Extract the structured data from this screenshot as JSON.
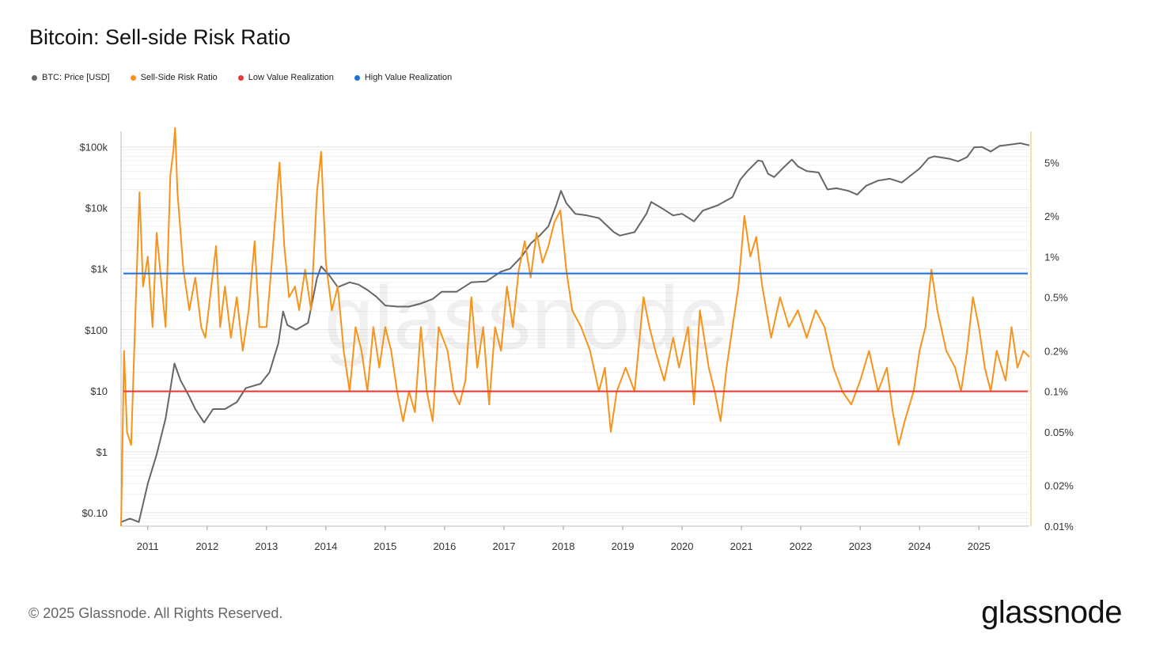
{
  "title": "Bitcoin: Sell-side Risk Ratio",
  "footer": "© 2025 Glassnode. All Rights Reserved.",
  "brand": "glassnode",
  "watermark": "glassnode",
  "legend": [
    {
      "label": "BTC: Price [USD]",
      "color": "#666666"
    },
    {
      "label": "Sell-Side Risk Ratio",
      "color": "#f7931a"
    },
    {
      "label": "Low Value Realization",
      "color": "#e53935"
    },
    {
      "label": "High Value Realization",
      "color": "#1e6fd9"
    }
  ],
  "chart_data": {
    "type": "line",
    "x_ticks": [
      "2011",
      "2012",
      "2013",
      "2014",
      "2015",
      "2016",
      "2017",
      "2018",
      "2019",
      "2020",
      "2021",
      "2022",
      "2023",
      "2024",
      "2025"
    ],
    "y_left_ticks": [
      {
        "value": 0.1,
        "label": "$0.10"
      },
      {
        "value": 1,
        "label": "$1"
      },
      {
        "value": 10,
        "label": "$10"
      },
      {
        "value": 100,
        "label": "$100"
      },
      {
        "value": 1000,
        "label": "$1k"
      },
      {
        "value": 10000,
        "label": "$10k"
      },
      {
        "value": 100000,
        "label": "$100k"
      }
    ],
    "y_right_ticks": [
      {
        "value": 0.01,
        "label": "0.01%"
      },
      {
        "value": 0.02,
        "label": "0.02%"
      },
      {
        "value": 0.05,
        "label": "0.05%"
      },
      {
        "value": 0.1,
        "label": "0.1%"
      },
      {
        "value": 0.2,
        "label": "0.2%"
      },
      {
        "value": 0.5,
        "label": "0.5%"
      },
      {
        "value": 1,
        "label": "1%"
      },
      {
        "value": 2,
        "label": "2%"
      },
      {
        "value": 5,
        "label": "5%"
      }
    ],
    "x_range": [
      2010.55,
      2025.85
    ],
    "y_left_range_log": [
      0.06,
      180000
    ],
    "y_right_range_log_pct": [
      0.01,
      8.5
    ],
    "scale": "log",
    "thresholds": [
      {
        "name": "Low Value Realization",
        "value_pct": 0.1,
        "color": "#e53935"
      },
      {
        "name": "High Value Realization",
        "value_pct": 0.75,
        "color": "#1e6fd9"
      }
    ],
    "series": [
      {
        "name": "BTC: Price [USD]",
        "axis": "left",
        "color": "#666666",
        "points": [
          [
            2010.55,
            0.07
          ],
          [
            2010.7,
            0.08
          ],
          [
            2010.85,
            0.07
          ],
          [
            2011.0,
            0.3
          ],
          [
            2011.15,
            0.9
          ],
          [
            2011.3,
            3.5
          ],
          [
            2011.45,
            28
          ],
          [
            2011.55,
            15
          ],
          [
            2011.7,
            8
          ],
          [
            2011.8,
            5
          ],
          [
            2011.95,
            3
          ],
          [
            2012.1,
            5
          ],
          [
            2012.3,
            5
          ],
          [
            2012.5,
            6.5
          ],
          [
            2012.65,
            11
          ],
          [
            2012.9,
            13
          ],
          [
            2013.05,
            20
          ],
          [
            2013.2,
            60
          ],
          [
            2013.28,
            200
          ],
          [
            2013.35,
            120
          ],
          [
            2013.5,
            100
          ],
          [
            2013.7,
            130
          ],
          [
            2013.85,
            700
          ],
          [
            2013.92,
            1100
          ],
          [
            2014.05,
            800
          ],
          [
            2014.2,
            500
          ],
          [
            2014.4,
            600
          ],
          [
            2014.55,
            550
          ],
          [
            2014.7,
            450
          ],
          [
            2014.85,
            350
          ],
          [
            2015.0,
            250
          ],
          [
            2015.2,
            240
          ],
          [
            2015.4,
            240
          ],
          [
            2015.6,
            270
          ],
          [
            2015.8,
            320
          ],
          [
            2015.95,
            420
          ],
          [
            2016.2,
            420
          ],
          [
            2016.45,
            600
          ],
          [
            2016.7,
            620
          ],
          [
            2016.95,
            900
          ],
          [
            2017.1,
            1000
          ],
          [
            2017.3,
            1600
          ],
          [
            2017.45,
            2600
          ],
          [
            2017.6,
            3500
          ],
          [
            2017.75,
            5000
          ],
          [
            2017.88,
            11000
          ],
          [
            2017.96,
            19000
          ],
          [
            2018.05,
            12000
          ],
          [
            2018.2,
            8000
          ],
          [
            2018.4,
            7500
          ],
          [
            2018.6,
            6800
          ],
          [
            2018.85,
            4000
          ],
          [
            2018.95,
            3500
          ],
          [
            2019.2,
            4000
          ],
          [
            2019.4,
            8000
          ],
          [
            2019.48,
            12500
          ],
          [
            2019.65,
            10000
          ],
          [
            2019.85,
            7500
          ],
          [
            2020.0,
            8000
          ],
          [
            2020.2,
            6000
          ],
          [
            2020.35,
            9000
          ],
          [
            2020.6,
            11000
          ],
          [
            2020.85,
            15000
          ],
          [
            2020.98,
            29000
          ],
          [
            2021.1,
            40000
          ],
          [
            2021.28,
            60000
          ],
          [
            2021.35,
            58000
          ],
          [
            2021.45,
            36000
          ],
          [
            2021.55,
            32000
          ],
          [
            2021.7,
            45000
          ],
          [
            2021.85,
            62000
          ],
          [
            2021.95,
            48000
          ],
          [
            2022.1,
            40000
          ],
          [
            2022.3,
            38000
          ],
          [
            2022.45,
            20000
          ],
          [
            2022.6,
            21000
          ],
          [
            2022.8,
            19000
          ],
          [
            2022.95,
            16500
          ],
          [
            2023.1,
            23000
          ],
          [
            2023.3,
            28000
          ],
          [
            2023.5,
            30000
          ],
          [
            2023.7,
            26000
          ],
          [
            2023.9,
            37000
          ],
          [
            2024.0,
            44000
          ],
          [
            2024.15,
            65000
          ],
          [
            2024.25,
            70000
          ],
          [
            2024.5,
            64000
          ],
          [
            2024.65,
            58000
          ],
          [
            2024.8,
            68000
          ],
          [
            2024.92,
            98000
          ],
          [
            2025.05,
            100000
          ],
          [
            2025.2,
            84000
          ],
          [
            2025.35,
            104000
          ],
          [
            2025.55,
            110000
          ],
          [
            2025.7,
            115000
          ],
          [
            2025.85,
            106000
          ]
        ]
      },
      {
        "name": "Sell-Side Risk Ratio",
        "axis": "right",
        "color": "#f7931a",
        "points": [
          [
            2010.55,
            0.01
          ],
          [
            2010.6,
            0.2
          ],
          [
            2010.65,
            0.05
          ],
          [
            2010.72,
            0.04
          ],
          [
            2010.8,
            0.5
          ],
          [
            2010.86,
            3
          ],
          [
            2010.92,
            0.6
          ],
          [
            2011.0,
            1.0
          ],
          [
            2011.08,
            0.3
          ],
          [
            2011.15,
            1.5
          ],
          [
            2011.22,
            0.7
          ],
          [
            2011.3,
            0.3
          ],
          [
            2011.38,
            4
          ],
          [
            2011.43,
            6
          ],
          [
            2011.46,
            9
          ],
          [
            2011.5,
            3
          ],
          [
            2011.6,
            0.8
          ],
          [
            2011.7,
            0.4
          ],
          [
            2011.8,
            0.7
          ],
          [
            2011.9,
            0.3
          ],
          [
            2011.97,
            0.25
          ],
          [
            2012.05,
            0.5
          ],
          [
            2012.15,
            1.2
          ],
          [
            2012.22,
            0.3
          ],
          [
            2012.3,
            0.6
          ],
          [
            2012.4,
            0.25
          ],
          [
            2012.5,
            0.5
          ],
          [
            2012.6,
            0.2
          ],
          [
            2012.7,
            0.4
          ],
          [
            2012.8,
            1.3
          ],
          [
            2012.88,
            0.3
          ],
          [
            2013.0,
            0.3
          ],
          [
            2013.08,
            0.8
          ],
          [
            2013.15,
            2.0
          ],
          [
            2013.22,
            5
          ],
          [
            2013.3,
            1.2
          ],
          [
            2013.38,
            0.5
          ],
          [
            2013.48,
            0.6
          ],
          [
            2013.55,
            0.4
          ],
          [
            2013.65,
            0.8
          ],
          [
            2013.75,
            0.4
          ],
          [
            2013.85,
            3
          ],
          [
            2013.92,
            6
          ],
          [
            2014.0,
            0.9
          ],
          [
            2014.1,
            0.4
          ],
          [
            2014.2,
            0.6
          ],
          [
            2014.3,
            0.2
          ],
          [
            2014.4,
            0.1
          ],
          [
            2014.5,
            0.3
          ],
          [
            2014.6,
            0.2
          ],
          [
            2014.7,
            0.1
          ],
          [
            2014.8,
            0.3
          ],
          [
            2014.9,
            0.15
          ],
          [
            2015.0,
            0.3
          ],
          [
            2015.1,
            0.2
          ],
          [
            2015.2,
            0.1
          ],
          [
            2015.3,
            0.06
          ],
          [
            2015.4,
            0.1
          ],
          [
            2015.5,
            0.07
          ],
          [
            2015.6,
            0.3
          ],
          [
            2015.7,
            0.1
          ],
          [
            2015.8,
            0.06
          ],
          [
            2015.9,
            0.3
          ],
          [
            2016.05,
            0.2
          ],
          [
            2016.15,
            0.1
          ],
          [
            2016.25,
            0.08
          ],
          [
            2016.35,
            0.12
          ],
          [
            2016.45,
            0.5
          ],
          [
            2016.55,
            0.15
          ],
          [
            2016.65,
            0.3
          ],
          [
            2016.75,
            0.08
          ],
          [
            2016.85,
            0.3
          ],
          [
            2016.95,
            0.2
          ],
          [
            2017.05,
            0.6
          ],
          [
            2017.15,
            0.3
          ],
          [
            2017.25,
            0.8
          ],
          [
            2017.35,
            1.3
          ],
          [
            2017.45,
            0.7
          ],
          [
            2017.55,
            1.5
          ],
          [
            2017.65,
            0.9
          ],
          [
            2017.75,
            1.2
          ],
          [
            2017.85,
            1.8
          ],
          [
            2017.95,
            2.2
          ],
          [
            2018.05,
            0.8
          ],
          [
            2018.15,
            0.4
          ],
          [
            2018.3,
            0.3
          ],
          [
            2018.45,
            0.2
          ],
          [
            2018.6,
            0.1
          ],
          [
            2018.7,
            0.15
          ],
          [
            2018.8,
            0.05
          ],
          [
            2018.9,
            0.1
          ],
          [
            2019.05,
            0.15
          ],
          [
            2019.2,
            0.1
          ],
          [
            2019.35,
            0.5
          ],
          [
            2019.45,
            0.3
          ],
          [
            2019.55,
            0.2
          ],
          [
            2019.7,
            0.12
          ],
          [
            2019.85,
            0.25
          ],
          [
            2019.95,
            0.15
          ],
          [
            2020.1,
            0.3
          ],
          [
            2020.2,
            0.08
          ],
          [
            2020.3,
            0.4
          ],
          [
            2020.45,
            0.15
          ],
          [
            2020.55,
            0.1
          ],
          [
            2020.65,
            0.06
          ],
          [
            2020.75,
            0.15
          ],
          [
            2020.85,
            0.3
          ],
          [
            2020.95,
            0.6
          ],
          [
            2021.05,
            2.0
          ],
          [
            2021.15,
            1.0
          ],
          [
            2021.25,
            1.4
          ],
          [
            2021.35,
            0.6
          ],
          [
            2021.5,
            0.25
          ],
          [
            2021.65,
            0.5
          ],
          [
            2021.8,
            0.3
          ],
          [
            2021.95,
            0.4
          ],
          [
            2022.1,
            0.25
          ],
          [
            2022.25,
            0.4
          ],
          [
            2022.4,
            0.3
          ],
          [
            2022.55,
            0.15
          ],
          [
            2022.7,
            0.1
          ],
          [
            2022.85,
            0.08
          ],
          [
            2023.0,
            0.12
          ],
          [
            2023.15,
            0.2
          ],
          [
            2023.3,
            0.1
          ],
          [
            2023.45,
            0.15
          ],
          [
            2023.55,
            0.07
          ],
          [
            2023.65,
            0.04
          ],
          [
            2023.75,
            0.06
          ],
          [
            2023.9,
            0.1
          ],
          [
            2024.0,
            0.2
          ],
          [
            2024.1,
            0.3
          ],
          [
            2024.2,
            0.8
          ],
          [
            2024.3,
            0.4
          ],
          [
            2024.45,
            0.2
          ],
          [
            2024.6,
            0.15
          ],
          [
            2024.7,
            0.1
          ],
          [
            2024.8,
            0.2
          ],
          [
            2024.9,
            0.5
          ],
          [
            2025.0,
            0.3
          ],
          [
            2025.1,
            0.15
          ],
          [
            2025.2,
            0.1
          ],
          [
            2025.3,
            0.2
          ],
          [
            2025.45,
            0.12
          ],
          [
            2025.55,
            0.3
          ],
          [
            2025.65,
            0.15
          ],
          [
            2025.75,
            0.2
          ],
          [
            2025.85,
            0.18
          ]
        ]
      }
    ]
  }
}
